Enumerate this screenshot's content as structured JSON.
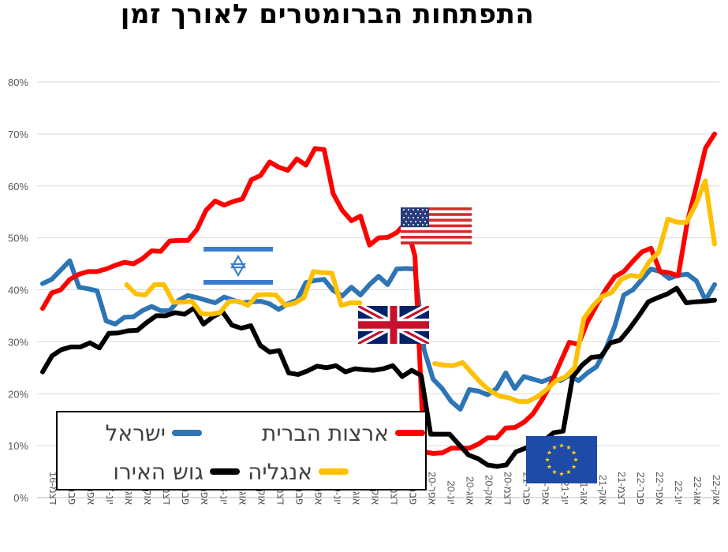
{
  "chart_data": {
    "type": "line",
    "title": "התפתחות הברומטרים לאורך זמן",
    "ylim": [
      0,
      80
    ],
    "y_ticks": [
      "0%",
      "10%",
      "20%",
      "30%",
      "40%",
      "50%",
      "60%",
      "70%",
      "80%"
    ],
    "x_labels": [
      "דצמ-16",
      "פבר-17",
      "אפר-17",
      "יונ-17",
      "אוג-17",
      "אוק-17",
      "דצמ-17",
      "פבר-18",
      "אפר-18",
      "יונ-18",
      "אוג-18",
      "אוק-18",
      "דצמ-18",
      "פבר-19",
      "אפר-19",
      "יונ-19",
      "אוג-19",
      "אוק-19",
      "דצמ-19",
      "פבר-20",
      "אפר-20",
      "יונ-20",
      "אוג-20",
      "אוק-20",
      "דצמ-20",
      "פבר-21",
      "אפר-21",
      "יונ-21",
      "אוג-21",
      "אוק-21",
      "דצמ-21",
      "פבר-22",
      "אפר-22",
      "יונ-22",
      "אוג-22",
      "אוק-22"
    ],
    "x_start": "2016-12",
    "grid": "horizontal",
    "legend_position": "bottom-left",
    "series": [
      {
        "name": "ישראל",
        "color": "#2E75B6",
        "values": [
          41.2,
          42,
          43.8,
          45.6,
          40.5,
          40.2,
          39.8,
          34,
          33.4,
          34.7,
          34.8,
          36,
          36.8,
          36,
          36,
          38,
          38.9,
          38.5,
          38,
          37.5,
          38.6,
          38,
          37.5,
          37.7,
          37.8,
          37.3,
          36.2,
          37.3,
          38,
          41.4,
          41.8,
          42,
          39.9,
          38.8,
          40.5,
          39,
          41,
          42.6,
          41,
          44,
          44.1,
          44,
          28.5,
          22.8,
          21,
          18.5,
          17,
          20.8,
          20.5,
          19.8,
          21,
          24,
          21,
          23.3,
          22.8,
          22.3,
          23,
          22.5,
          23.5,
          22.5,
          24,
          25.2,
          28.5,
          33,
          39,
          40,
          42,
          44,
          43.5,
          42.2,
          42.8,
          43,
          41.7,
          38,
          41
        ]
      },
      {
        "name": "ארצות הברית",
        "color": "#FF0000",
        "values": [
          36.4,
          39.4,
          40,
          42,
          43,
          43.5,
          43.5,
          44,
          44.7,
          45.3,
          45,
          46,
          47.5,
          47.4,
          49.4,
          49.5,
          49.5,
          51.6,
          55.3,
          57.1,
          56.3,
          57,
          57.5,
          61.2,
          62,
          64.6,
          63.6,
          63,
          65.2,
          64,
          67.2,
          67,
          58.5,
          55.3,
          53.3,
          54.2,
          48.6,
          50,
          50.1,
          51,
          52.9,
          46.5,
          8.8,
          8.5,
          8.6,
          9.5,
          9.5,
          9.5,
          10.3,
          11.5,
          11.5,
          13.4,
          13.5,
          14.5,
          16.1,
          18.8,
          22,
          26,
          29.9,
          29.5,
          33.8,
          37,
          40,
          42.5,
          43.5,
          45.5,
          47.3,
          48,
          43.5,
          43.3,
          42.7,
          53.1,
          60,
          67.3,
          70
        ]
      },
      {
        "name": "גוש האירו",
        "color": "#000000",
        "values": [
          24.2,
          27.3,
          28.5,
          29,
          29,
          29.8,
          28.8,
          31.6,
          31.7,
          32.1,
          32.2,
          33.7,
          35,
          35,
          35.6,
          35.3,
          36.5,
          33.4,
          34.8,
          35.8,
          33.2,
          32.6,
          33.1,
          29.3,
          28,
          28.3,
          24,
          23.7,
          24.4,
          25.3,
          25,
          25.4,
          24.2,
          24.8,
          24.6,
          24.5,
          24.8,
          25.4,
          23.3,
          24.5,
          23.5,
          12.2,
          12.2,
          12.2,
          10.2,
          8.2,
          7.5,
          6.3,
          6,
          6.3,
          8.8,
          9.5,
          10.3,
          11,
          12.5,
          12.8,
          23.2,
          25.5,
          27,
          27.2,
          29.8,
          30.3,
          32.5,
          35,
          37.7,
          38.5,
          39.2,
          40.3,
          37.5,
          37.7,
          37.8,
          38
        ]
      },
      {
        "name": "אנגליה",
        "color": "#FFC000",
        "values": [
          null,
          null,
          null,
          null,
          null,
          null,
          null,
          null,
          null,
          41,
          39.2,
          39,
          41,
          41,
          37.6,
          37.6,
          37.8,
          35.4,
          35.3,
          35.6,
          37.8,
          37.8,
          37,
          39,
          39.1,
          39,
          37,
          37.4,
          38.5,
          43.5,
          43.3,
          43.2,
          37,
          37.5,
          37.5,
          null,
          null,
          null,
          null,
          null,
          null,
          null,
          25.8,
          25.5,
          25.4,
          26,
          24,
          22,
          20.5,
          19.5,
          19.2,
          18.5,
          18.5,
          19.4,
          20.8,
          22.5,
          23.2,
          25,
          34.5,
          37,
          38.8,
          39.5,
          42,
          42.8,
          42.5,
          45.4,
          47.2,
          53.6,
          53,
          53,
          56.5,
          61,
          48.8
        ]
      }
    ]
  },
  "legend": {
    "israel": "ישראל",
    "usa": "ארצות הברית",
    "eurozone": "גוש האירו",
    "uk": "אנגליה"
  },
  "flags": [
    "israel-flag-icon",
    "usa-flag-icon",
    "uk-flag-icon",
    "eu-flag-icon"
  ]
}
